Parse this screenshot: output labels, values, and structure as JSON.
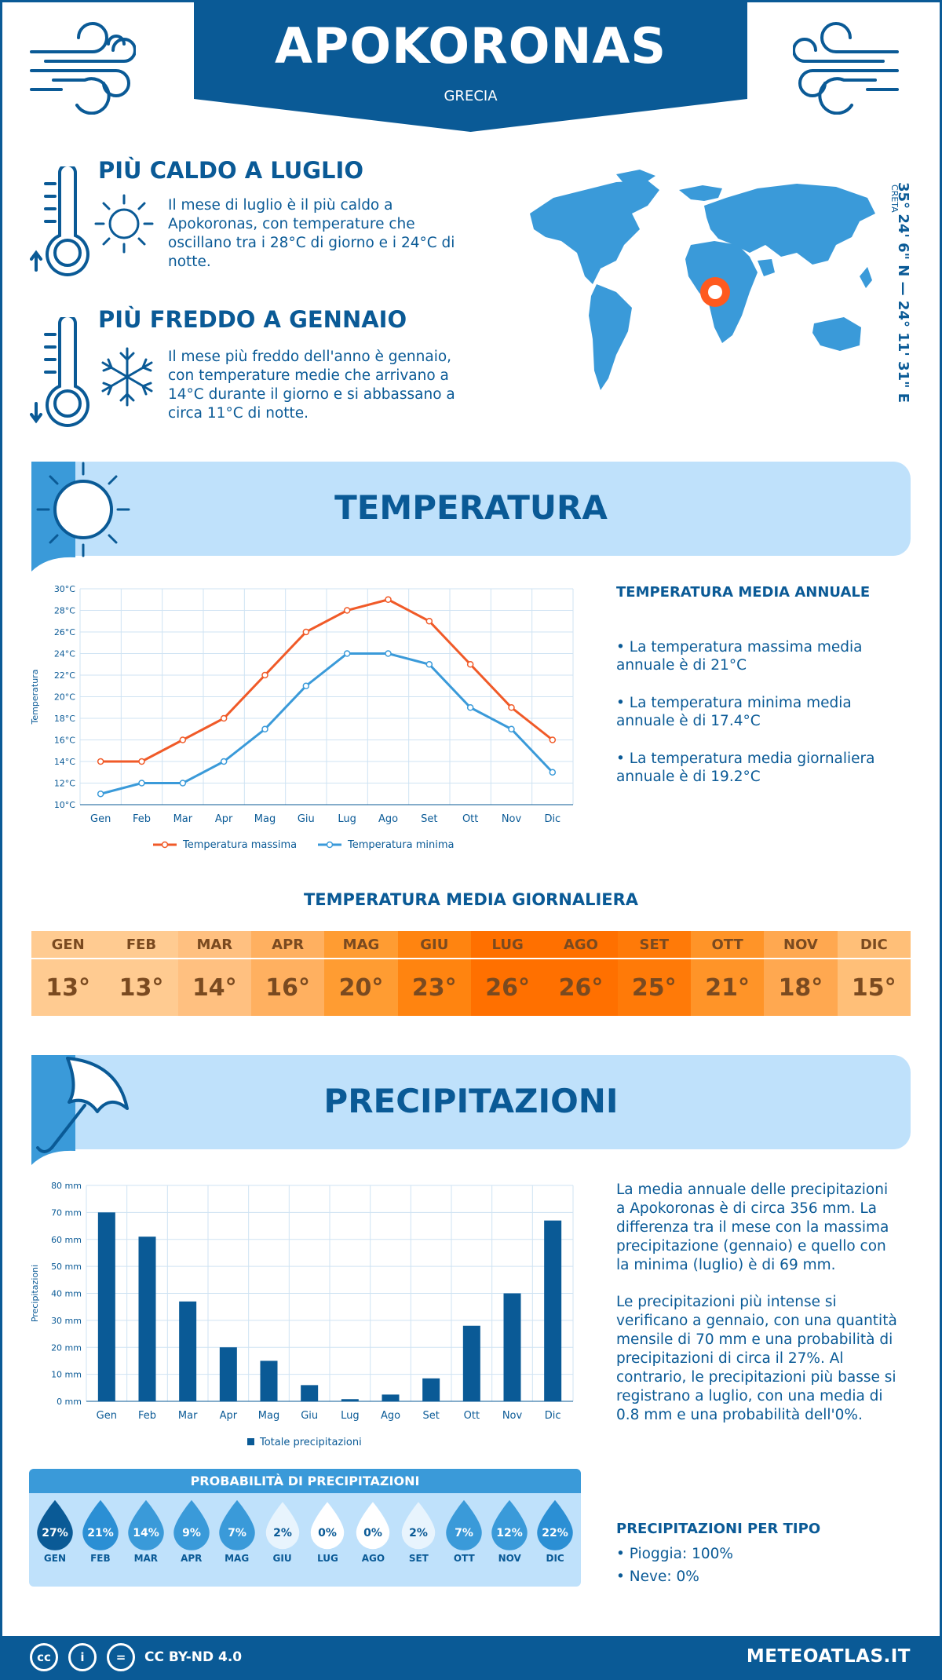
{
  "header": {
    "city": "APOKORONAS",
    "country": "GRECIA"
  },
  "hottest": {
    "title": "PIÙ CALDO A LUGLIO",
    "text": "Il mese di luglio è il più caldo a Apokoronas, con temperature che oscillano tra i 28°C di giorno e i 24°C di notte."
  },
  "coldest": {
    "title": "PIÙ FREDDO A GENNAIO",
    "text": "Il mese più freddo dell'anno è gennaio, con temperature medie che arrivano a 14°C durante il giorno e si abbassano a circa 11°C di notte."
  },
  "location": {
    "coords": "35° 24' 6\" N — 24° 11' 31\" E",
    "region": "CRETA"
  },
  "temperature": {
    "section_title": "TEMPERATURA",
    "annual_title": "TEMPERATURA MEDIA ANNUALE",
    "bullets": [
      "• La temperatura massima media annuale è di 21°C",
      "• La temperatura minima media annuale è di 17.4°C",
      "• La temperatura media giornaliera annuale è di 19.2°C"
    ],
    "daily_title": "TEMPERATURA MEDIA GIORNALIERA",
    "daily": [
      {
        "month": "GEN",
        "value": "13°",
        "color": "#ffcb91"
      },
      {
        "month": "FEB",
        "value": "13°",
        "color": "#ffcb91"
      },
      {
        "month": "MAR",
        "value": "14°",
        "color": "#ffc080"
      },
      {
        "month": "APR",
        "value": "16°",
        "color": "#ffb060"
      },
      {
        "month": "MAG",
        "value": "20°",
        "color": "#ff9c32"
      },
      {
        "month": "GIU",
        "value": "23°",
        "color": "#ff8410"
      },
      {
        "month": "LUG",
        "value": "26°",
        "color": "#ff7000"
      },
      {
        "month": "AGO",
        "value": "26°",
        "color": "#ff7000"
      },
      {
        "month": "SET",
        "value": "25°",
        "color": "#ff7a08"
      },
      {
        "month": "OTT",
        "value": "21°",
        "color": "#ff9428"
      },
      {
        "month": "NOV",
        "value": "18°",
        "color": "#ffa850"
      },
      {
        "month": "DIC",
        "value": "15°",
        "color": "#ffbf78"
      }
    ]
  },
  "precipitation": {
    "section_title": "PRECIPITAZIONI",
    "description1": "La media annuale delle precipitazioni a Apokoronas è di circa 356 mm. La differenza tra il mese con la massima precipitazione (gennaio) e quello con la minima (luglio) è di 69 mm.",
    "description2": "Le precipitazioni più intense si verificano a gennaio, con una quantità mensile di 70 mm e una probabilità di precipitazioni di circa il 27%. Al contrario, le precipitazioni più basse si registrano a luglio, con una media di 0.8 mm e una probabilità dell'0%.",
    "prob_title": "PROBABILITÀ DI PRECIPITAZIONI",
    "probabilities": [
      {
        "month": "GEN",
        "value": "27%",
        "color": "#0a5a96"
      },
      {
        "month": "FEB",
        "value": "21%",
        "color": "#2b8fd4"
      },
      {
        "month": "MAR",
        "value": "14%",
        "color": "#3a9ad9"
      },
      {
        "month": "APR",
        "value": "9%",
        "color": "#3a9ad9"
      },
      {
        "month": "MAG",
        "value": "7%",
        "color": "#3a9ad9"
      },
      {
        "month": "GIU",
        "value": "2%",
        "color": "#e8f4fd"
      },
      {
        "month": "LUG",
        "value": "0%",
        "color": "#ffffff"
      },
      {
        "month": "AGO",
        "value": "0%",
        "color": "#ffffff"
      },
      {
        "month": "SET",
        "value": "2%",
        "color": "#e8f4fd"
      },
      {
        "month": "OTT",
        "value": "7%",
        "color": "#3a9ad9"
      },
      {
        "month": "NOV",
        "value": "12%",
        "color": "#3a9ad9"
      },
      {
        "month": "DIC",
        "value": "22%",
        "color": "#2b8fd4"
      }
    ],
    "type_title": "PRECIPITAZIONI PER TIPO",
    "types": [
      "• Pioggia: 100%",
      "• Neve: 0%"
    ]
  },
  "footer": {
    "license": "CC BY-ND 4.0",
    "brand": "METEOATLAS.IT",
    "cc_icons": [
      "cc",
      "i",
      "="
    ]
  },
  "chart_data": [
    {
      "type": "line",
      "categories": [
        "Gen",
        "Feb",
        "Mar",
        "Apr",
        "Mag",
        "Giu",
        "Lug",
        "Ago",
        "Set",
        "Ott",
        "Nov",
        "Dic"
      ],
      "series": [
        {
          "name": "Temperatura massima",
          "values": [
            14,
            14,
            16,
            18,
            22,
            26,
            28,
            29,
            27,
            23,
            19,
            16
          ],
          "color": "#f05a28"
        },
        {
          "name": "Temperatura minima",
          "values": [
            11,
            12,
            12,
            14,
            17,
            21,
            24,
            24,
            23,
            19,
            17,
            13
          ],
          "color": "#3a9ad9"
        }
      ],
      "ylabel": "Temperatura",
      "ylim": [
        10,
        30
      ],
      "yticks": [
        "10°C",
        "12°C",
        "14°C",
        "16°C",
        "18°C",
        "20°C",
        "22°C",
        "24°C",
        "26°C",
        "28°C",
        "30°C"
      ],
      "grid": true,
      "legend": "bottom"
    },
    {
      "type": "bar",
      "categories": [
        "Gen",
        "Feb",
        "Mar",
        "Apr",
        "Mag",
        "Giu",
        "Lug",
        "Ago",
        "Set",
        "Ott",
        "Nov",
        "Dic"
      ],
      "series": [
        {
          "name": "Totale precipitazioni",
          "values": [
            70,
            61,
            37,
            20,
            15,
            6,
            0.8,
            2.5,
            8.5,
            28,
            40,
            67
          ],
          "color": "#0a5a96"
        }
      ],
      "ylabel": "Precipitazioni",
      "ylim": [
        0,
        80
      ],
      "yticks": [
        "0 mm",
        "10 mm",
        "20 mm",
        "30 mm",
        "40 mm",
        "50 mm",
        "60 mm",
        "70 mm",
        "80 mm"
      ],
      "grid": true,
      "legend": "bottom"
    }
  ]
}
